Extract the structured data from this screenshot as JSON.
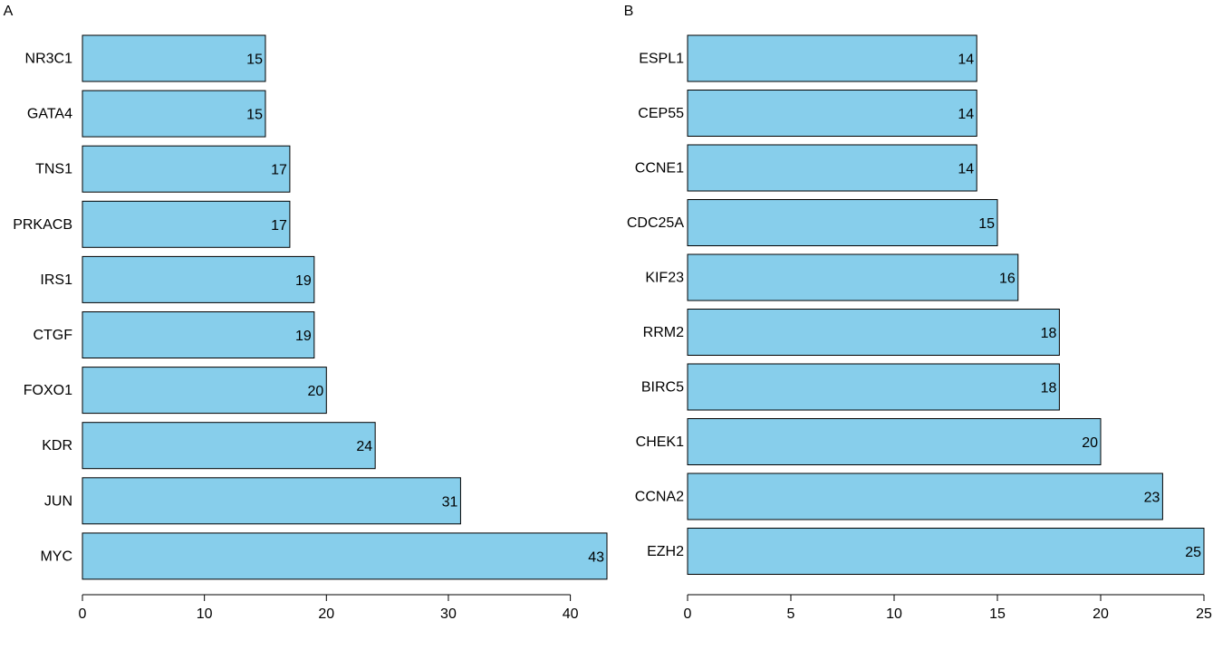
{
  "chart_data": [
    {
      "type": "bar",
      "orientation": "horizontal",
      "panel_label": "A",
      "categories": [
        "NR3C1",
        "GATA4",
        "TNS1",
        "PRKACB",
        "IRS1",
        "CTGF",
        "FOXO1",
        "KDR",
        "JUN",
        "MYC"
      ],
      "values": [
        15,
        15,
        17,
        17,
        19,
        19,
        20,
        24,
        31,
        43
      ],
      "value_labels": [
        "15",
        "15",
        "17",
        "17",
        "19",
        "19",
        "20",
        "24",
        "31",
        "43"
      ],
      "xlim": [
        0,
        43
      ],
      "xticks": [
        0,
        10,
        20,
        30,
        40
      ],
      "xtick_labels": [
        "0",
        "10",
        "20",
        "30",
        "40"
      ],
      "title": "",
      "xlabel": "",
      "ylabel": "",
      "grid": false,
      "legend": "none"
    },
    {
      "type": "bar",
      "orientation": "horizontal",
      "panel_label": "B",
      "categories": [
        "ESPL1",
        "CEP55",
        "CCNE1",
        "CDC25A",
        "KIF23",
        "RRM2",
        "BIRC5",
        "CHEK1",
        "CCNA2",
        "EZH2"
      ],
      "values": [
        14,
        14,
        14,
        15,
        16,
        18,
        18,
        20,
        23,
        25
      ],
      "value_labels": [
        "14",
        "14",
        "14",
        "15",
        "16",
        "18",
        "18",
        "20",
        "23",
        "25"
      ],
      "xlim": [
        0,
        25
      ],
      "xticks": [
        0,
        5,
        10,
        15,
        20,
        25
      ],
      "xtick_labels": [
        "0",
        "5",
        "10",
        "15",
        "20",
        "25"
      ],
      "title": "",
      "xlabel": "",
      "ylabel": "",
      "grid": false,
      "legend": "none"
    }
  ],
  "colors": {
    "bar_fill": "#87CEEB",
    "bar_stroke": "#000000",
    "text": "#000000",
    "background": "#FFFFFF"
  }
}
